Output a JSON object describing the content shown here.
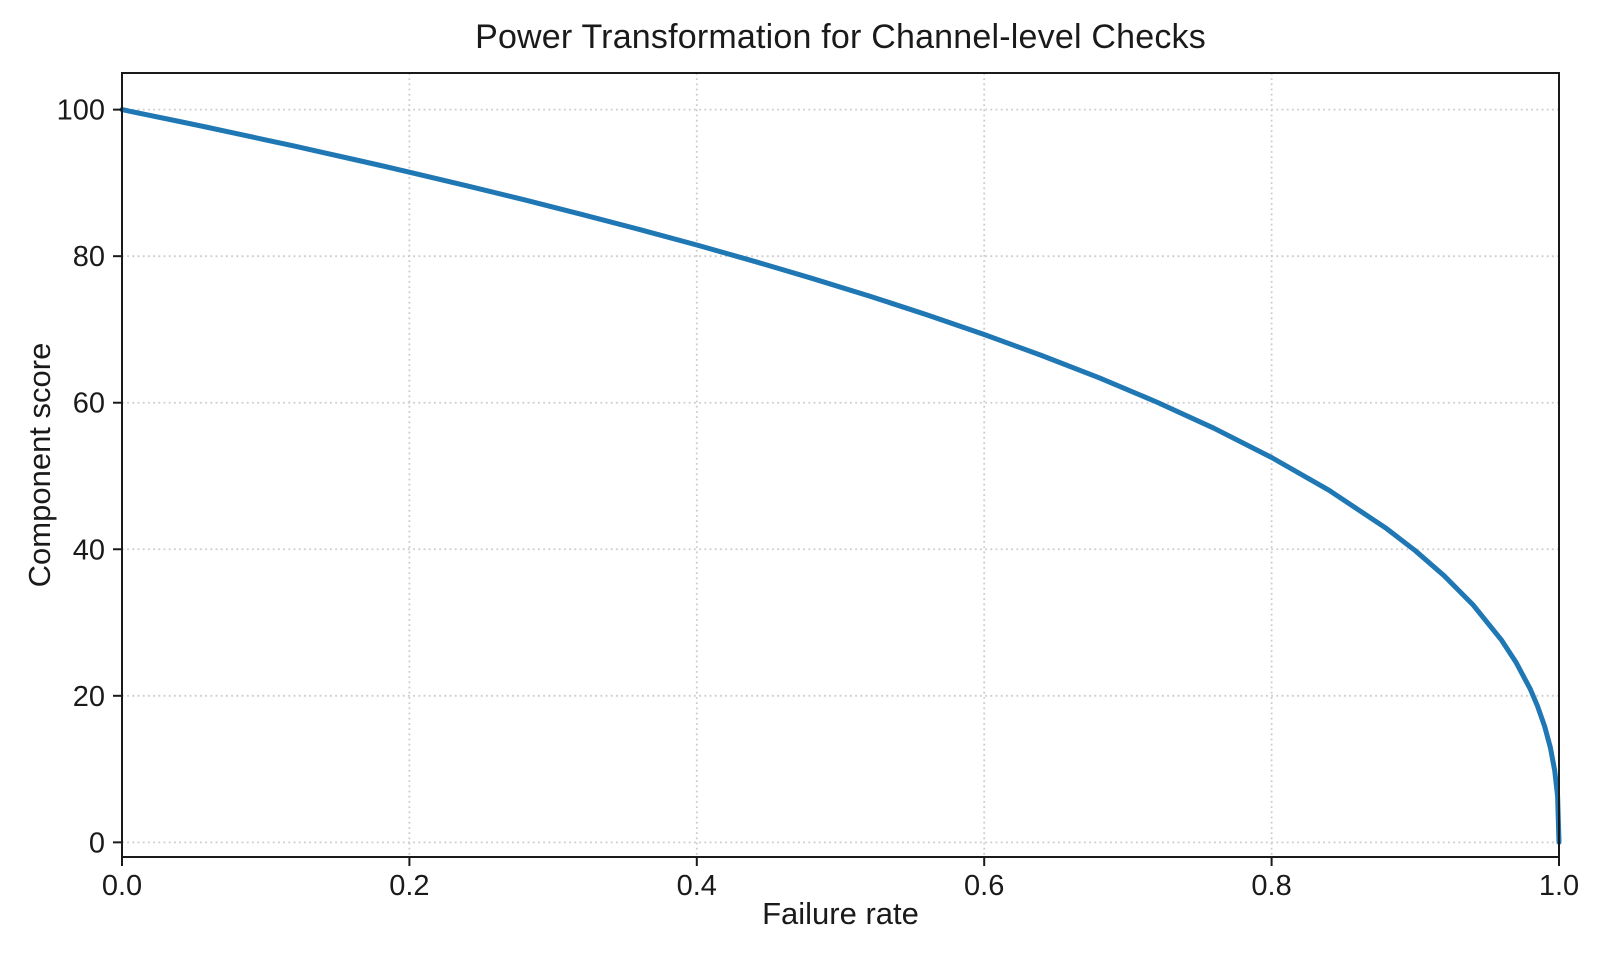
{
  "chart_data": {
    "type": "line",
    "title": "Power Transformation for Channel-level Checks",
    "xlabel": "Failure rate",
    "ylabel": "Component score",
    "xlim": [
      0.0,
      1.0
    ],
    "ylim": [
      -2,
      105
    ],
    "grid": "dotted",
    "legend": "none",
    "line_color": "#1f77b4",
    "line_width": 5,
    "grid_color": "#cccccc",
    "spine_color": "#1a1a1a",
    "xticks": [
      {
        "value": 0.0,
        "label": "0.0"
      },
      {
        "value": 0.2,
        "label": "0.2"
      },
      {
        "value": 0.4,
        "label": "0.4"
      },
      {
        "value": 0.6,
        "label": "0.6"
      },
      {
        "value": 0.8,
        "label": "0.8"
      },
      {
        "value": 1.0,
        "label": "1.0"
      }
    ],
    "yticks": [
      {
        "value": 0,
        "label": "0"
      },
      {
        "value": 20,
        "label": "20"
      },
      {
        "value": 40,
        "label": "40"
      },
      {
        "value": 60,
        "label": "60"
      },
      {
        "value": 80,
        "label": "80"
      },
      {
        "value": 100,
        "label": "100"
      }
    ],
    "series": [
      {
        "name": "component score",
        "relation": "y = 100 * (1 - x)^0.4",
        "points": [
          [
            0.0,
            100.0
          ],
          [
            0.02,
            99.19
          ],
          [
            0.04,
            98.38
          ],
          [
            0.06,
            97.56
          ],
          [
            0.08,
            96.72
          ],
          [
            0.1,
            95.87
          ],
          [
            0.12,
            95.02
          ],
          [
            0.14,
            94.14
          ],
          [
            0.16,
            93.26
          ],
          [
            0.18,
            92.37
          ],
          [
            0.2,
            91.46
          ],
          [
            0.24,
            89.6
          ],
          [
            0.28,
            87.69
          ],
          [
            0.32,
            85.7
          ],
          [
            0.36,
            83.65
          ],
          [
            0.4,
            81.52
          ],
          [
            0.44,
            79.3
          ],
          [
            0.48,
            76.98
          ],
          [
            0.52,
            74.56
          ],
          [
            0.56,
            72.01
          ],
          [
            0.6,
            69.31
          ],
          [
            0.64,
            66.45
          ],
          [
            0.68,
            63.4
          ],
          [
            0.72,
            60.1
          ],
          [
            0.76,
            56.51
          ],
          [
            0.8,
            52.53
          ],
          [
            0.84,
            48.05
          ],
          [
            0.88,
            42.82
          ],
          [
            0.9,
            39.81
          ],
          [
            0.92,
            36.41
          ],
          [
            0.94,
            32.45
          ],
          [
            0.96,
            27.6
          ],
          [
            0.97,
            24.6
          ],
          [
            0.98,
            20.91
          ],
          [
            0.985,
            18.64
          ],
          [
            0.99,
            15.85
          ],
          [
            0.994,
            12.92
          ],
          [
            0.997,
            9.79
          ],
          [
            0.999,
            6.31
          ],
          [
            1.0,
            0.0
          ]
        ]
      }
    ]
  }
}
